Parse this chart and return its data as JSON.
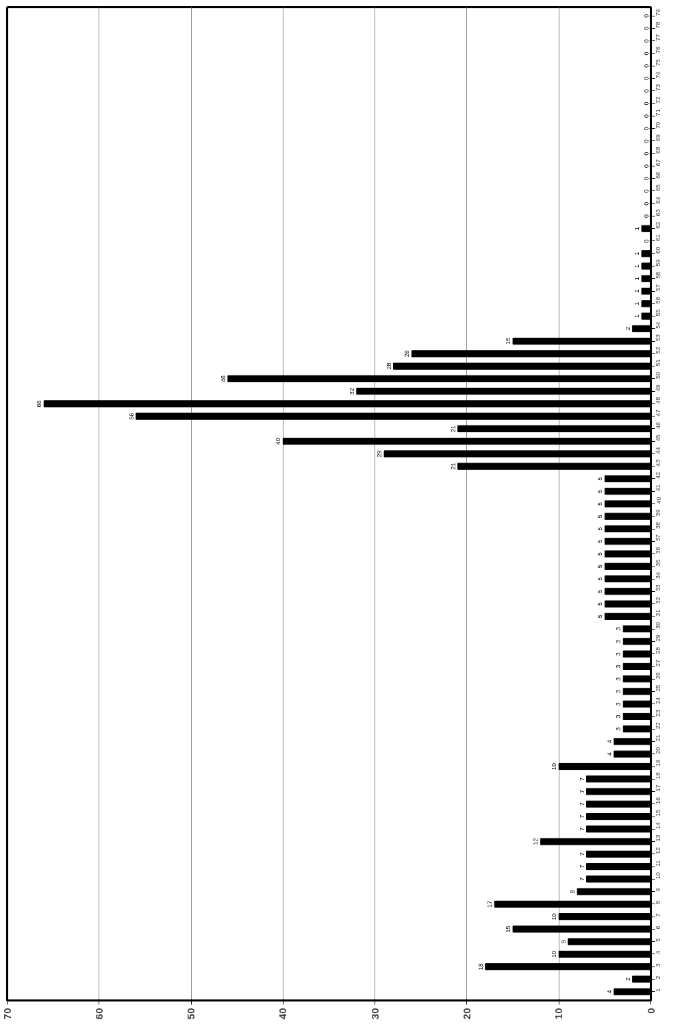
{
  "chart_data": {
    "type": "bar",
    "orientation": "horizontal",
    "categories": [
      "79",
      "78",
      "77",
      "76",
      "75",
      "74",
      "73",
      "72",
      "71",
      "70",
      "69",
      "68",
      "67",
      "66",
      "65",
      "64",
      "63",
      "62",
      "61",
      "60",
      "59",
      "58",
      "57",
      "56",
      "55",
      "54",
      "53",
      "52",
      "51",
      "50",
      "49",
      "48",
      "47",
      "46",
      "45",
      "44",
      "43",
      "42",
      "41",
      "40",
      "39",
      "38",
      "37",
      "36",
      "35",
      "34",
      "33",
      "32",
      "31",
      "30",
      "29",
      "28",
      "27",
      "26",
      "25",
      "24",
      "23",
      "22",
      "21",
      "20",
      "19",
      "18",
      "17",
      "16",
      "15",
      "14",
      "13",
      "12",
      "11",
      "10",
      "9",
      "8",
      "7",
      "6",
      "5",
      "4",
      "3",
      "2",
      "1"
    ],
    "values": [
      0,
      0,
      0,
      0,
      0,
      0,
      0,
      0,
      0,
      0,
      0,
      0,
      0,
      0,
      0,
      0,
      0,
      1,
      0,
      1,
      1,
      1,
      1,
      1,
      1,
      2,
      15,
      26,
      28,
      46,
      32,
      66,
      56,
      21,
      40,
      29,
      21,
      5,
      5,
      5,
      5,
      5,
      5,
      5,
      5,
      5,
      5,
      5,
      5,
      3,
      3,
      3,
      3,
      3,
      3,
      3,
      3,
      3,
      4,
      4,
      10,
      7,
      7,
      7,
      7,
      7,
      12,
      7,
      7,
      7,
      8,
      17,
      10,
      15,
      9,
      10,
      18,
      2,
      4
    ],
    "color": "#000000",
    "xlim": [
      70,
      0
    ],
    "xticks": [
      70,
      60,
      50,
      40,
      30,
      20,
      10,
      0
    ],
    "grid": "x",
    "data_labels": true
  }
}
